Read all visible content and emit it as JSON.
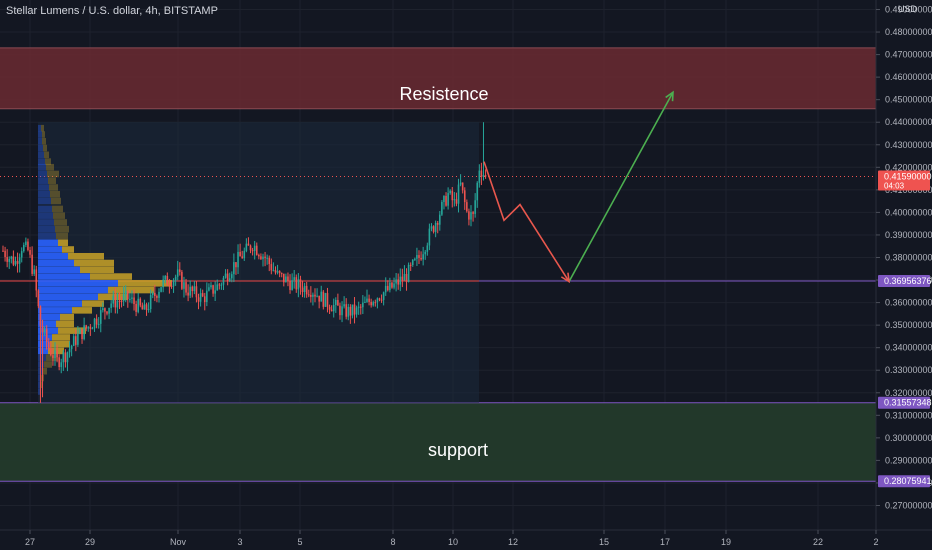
{
  "header": {
    "title": "Stellar Lumens / U.S. dollar, 4h, BITSTAMP",
    "currency": "USD"
  },
  "annotations": {
    "resistance_label": "Resistence",
    "support_label": "support"
  },
  "colors": {
    "background": "#131722",
    "up": "#26a69a",
    "down": "#ef5350",
    "resistance_zone": "#6b2a31",
    "support_zone": "#233a2b",
    "hline": "#e84545",
    "guide": "#7e57c2",
    "projection_down": "#e8574d",
    "projection_up": "#4caf50",
    "vp_up": "#2962ff",
    "vp_down": "#c9a227"
  },
  "chart_data": {
    "type": "candlestick",
    "title": "Stellar Lumens / U.S. dollar, 4h, BITSTAMP",
    "ylabel": "USD",
    "ylim": [
      0.262,
      0.498
    ],
    "y_ticks": [
      "0.49000000",
      "0.48000000",
      "0.47000000",
      "0.46000000",
      "0.45000000",
      "0.44000000",
      "0.43000000",
      "0.42000000",
      "0.41000000",
      "0.40000000",
      "0.39000000",
      "0.38000000",
      "0.37000000",
      "0.36000000",
      "0.35000000",
      "0.34000000",
      "0.33000000",
      "0.32000000",
      "0.31000000",
      "0.30000000",
      "0.29000000",
      "0.28000000",
      "0.27000000"
    ],
    "x_ticks": [
      "27",
      "29",
      "Nov",
      "3",
      "5",
      "8",
      "10",
      "12",
      "15",
      "17",
      "19",
      "22",
      "2"
    ],
    "price_tags": {
      "current": {
        "value": "0.41590000",
        "timer": "04:03"
      },
      "horizontal_level": "0.36956376",
      "support_top": "0.31557348",
      "support_bottom": "0.28075941"
    },
    "zones": {
      "resistance": [
        0.446,
        0.473
      ],
      "support": [
        0.28076,
        0.31557
      ]
    },
    "horizontal_level": 0.36956,
    "volume_profile_range": [
      0.3155,
      0.44
    ],
    "projection_path": [
      {
        "date_index": 0,
        "price": 0.4225
      },
      {
        "date_index": 1,
        "price": 0.3965
      },
      {
        "date_index": 2,
        "price": 0.4035
      },
      {
        "date_index": 3,
        "price": 0.3693
      },
      {
        "date_index": 4,
        "price": 0.4533
      }
    ],
    "ohlc_approx": {
      "start": 0.383,
      "range_low": 0.3155,
      "range_high": 0.44,
      "last_close": 0.4159
    }
  }
}
